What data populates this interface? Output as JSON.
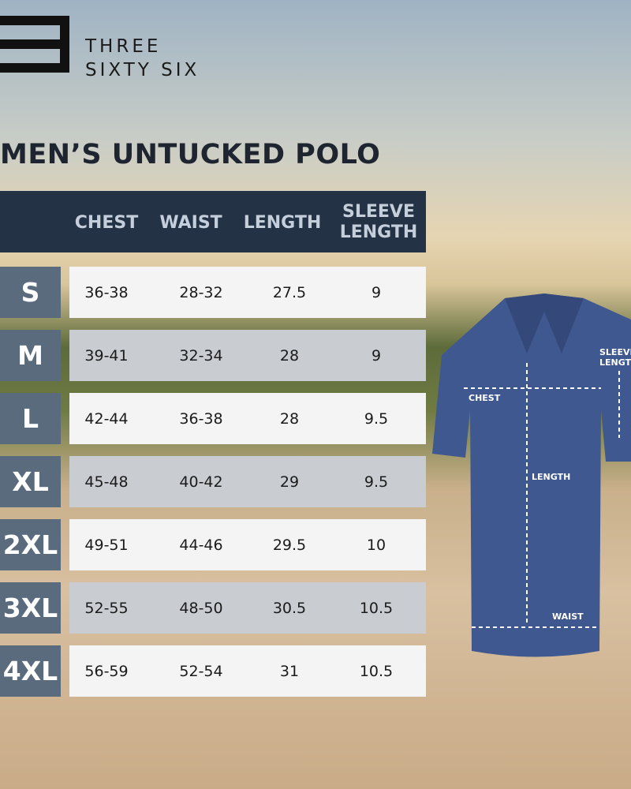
{
  "brand": {
    "line1": "THREE",
    "line2": "SIXTY SIX"
  },
  "title": "MEN’S UNTUCKED POLO",
  "table": {
    "header": [
      "CHEST",
      "WAIST",
      "LENGTH",
      "SLEEVE LENGTH"
    ],
    "rows": [
      [
        "S",
        "36-38",
        "28-32",
        "27.5",
        "9"
      ],
      [
        "M",
        "39-41",
        "32-34",
        "28",
        "9"
      ],
      [
        "L",
        "42-44",
        "36-38",
        "28",
        "9.5"
      ],
      [
        "XL",
        "45-48",
        "40-42",
        "29",
        "9.5"
      ],
      [
        "2XL",
        "49-51",
        "44-46",
        "29.5",
        "10"
      ],
      [
        "3XL",
        "52-55",
        "48-50",
        "30.5",
        "10.5"
      ],
      [
        "4XL",
        "56-59",
        "52-54",
        "31",
        "10.5"
      ]
    ]
  },
  "diagram": {
    "chest": "CHEST",
    "length": "LENGTH",
    "waist": "WAIST",
    "sleeve": "SLEEVE LENGTH"
  }
}
